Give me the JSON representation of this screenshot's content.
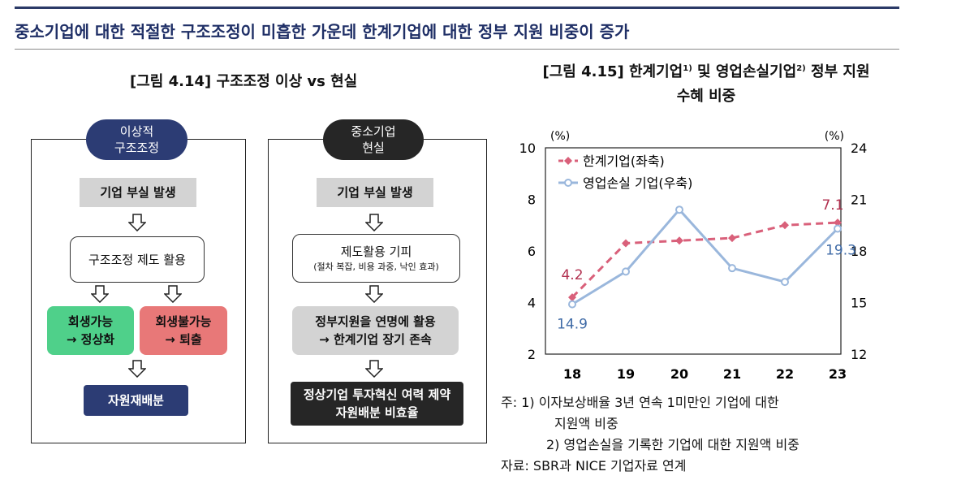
{
  "headline": "중소기업에 대한 적절한 구조조정이 미흡한 가운데 한계기업에 대한 정부 지원 비중이 증가",
  "left_figure": {
    "title": "[그림 4.14] 구조조정 이상 vs 현실",
    "ideal": {
      "pill_line1": "이상적",
      "pill_line2": "구조조정",
      "step1": "기업 부실 발생",
      "step2": "구조조정 제도 활용",
      "green_line1": "회생가능",
      "green_line2": "→ 정상화",
      "red_line1": "회생불가능",
      "red_line2": "→ 퇴출",
      "step4": "자원재배분"
    },
    "reality": {
      "pill_line1": "중소기업",
      "pill_line2": "현실",
      "step1": "기업 부실 발생",
      "step2_line1": "제도활용 기피",
      "step2_line2": "(절차 복잡, 비용 과중, 낙인 효과)",
      "step3_line1": "정부지원을 연명에 활용",
      "step3_line2": "→ 한계기업 장기 존속",
      "step4_line1": "정상기업 투자혁신 여력 제약",
      "step4_line2": "자원배분 비효율"
    }
  },
  "right_figure": {
    "title_line1": "[그림 4.15] 한계기업",
    "title_sup1": "1)",
    "title_mid": " 및 영업손실기업",
    "title_sup2": "2)",
    "title_end": " 정부 지원",
    "title_line2": "수혜 비중"
  },
  "chart_data": {
    "type": "line",
    "x": [
      "18",
      "19",
      "20",
      "21",
      "22",
      "23"
    ],
    "left_axis": {
      "unit": "(%)",
      "ylim": [
        2,
        10
      ],
      "ticks": [
        "2",
        "4",
        "6",
        "8",
        "10"
      ]
    },
    "right_axis": {
      "unit": "(%)",
      "ylim": [
        12,
        24
      ],
      "ticks": [
        "12",
        "15",
        "18",
        "21",
        "24"
      ]
    },
    "series": [
      {
        "name": "한계기업(좌축)",
        "axis": "left",
        "color": "#d9607a",
        "style": "dashed",
        "values": [
          4.2,
          6.3,
          6.4,
          6.5,
          7.0,
          7.1
        ]
      },
      {
        "name": "영업손실 기업(우축)",
        "axis": "right",
        "color": "#9ab7dc",
        "style": "solid",
        "values": [
          14.9,
          16.8,
          20.4,
          17.0,
          16.2,
          19.3
        ]
      }
    ],
    "data_labels": [
      {
        "series": 0,
        "index": 0,
        "text": "4.2"
      },
      {
        "series": 0,
        "index": 5,
        "text": "7.1"
      },
      {
        "series": 1,
        "index": 0,
        "text": "14.9"
      },
      {
        "series": 1,
        "index": 5,
        "text": "19.3"
      }
    ],
    "legend_position": "top-left",
    "grid": false
  },
  "notes": {
    "note1_line1": "주: 1) 이자보상배율 3년 연속 1미만인 기업에 대한",
    "note1_line2": "지원액 비중",
    "note2": "2) 영업손실을 기록한 기업에 대한 지원액 비중",
    "source": "자료: SBR과 NICE 기업자료 연계"
  },
  "colors": {
    "navy": "#2c3c74",
    "gray_box": "#d3d3d3",
    "green_box": "#4fd08a",
    "red_box": "#e87878",
    "black_box": "#262626"
  }
}
